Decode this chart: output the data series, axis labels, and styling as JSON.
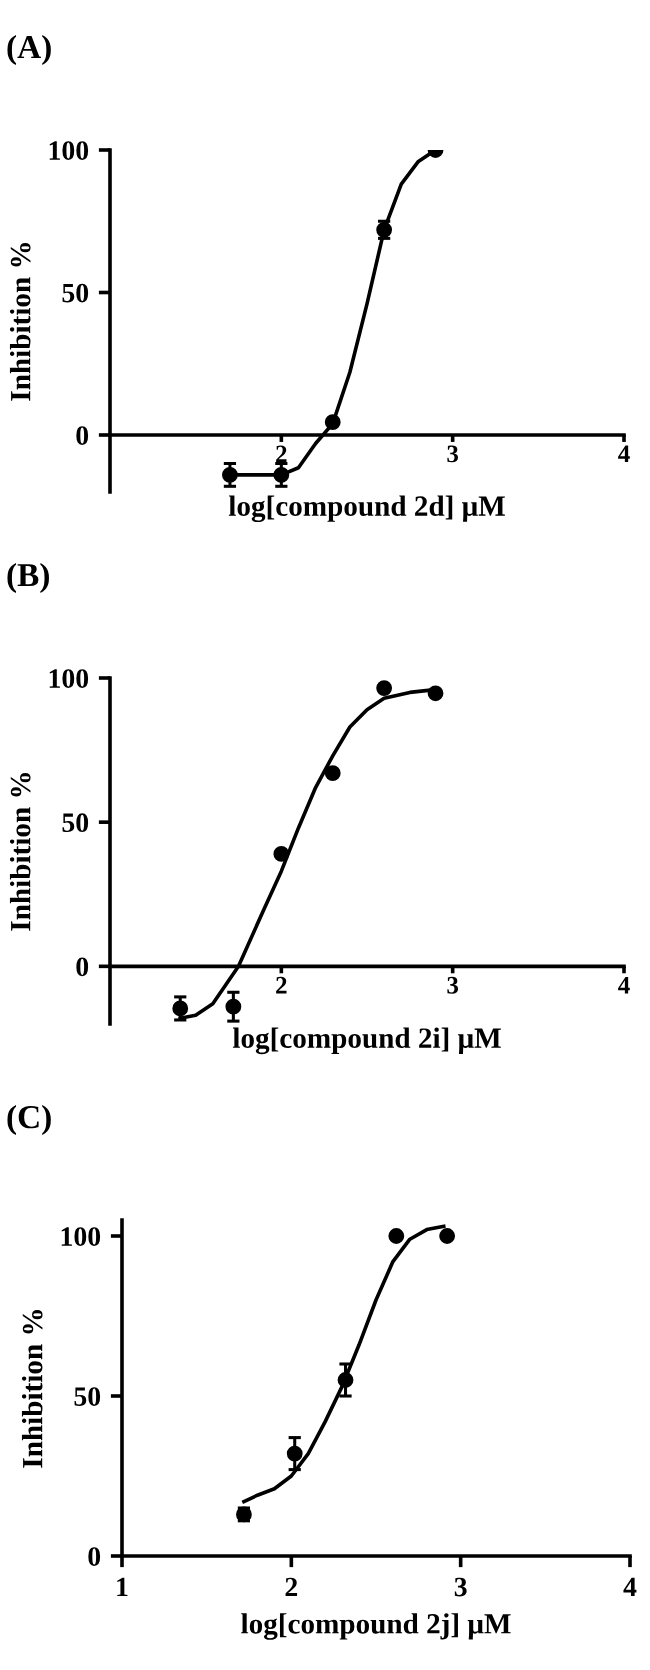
{
  "chart_data": [
    {
      "type": "scatter",
      "title": "(A)",
      "xlabel": "log[compound 2d] μM",
      "ylabel": "Inhibition %",
      "xlim": [
        1,
        4
      ],
      "ylim": [
        -20,
        100
      ],
      "xticks": [
        2,
        3,
        4
      ],
      "yticks": [
        0,
        50,
        100
      ],
      "grid": false,
      "series": [
        {
          "color": "#000000",
          "marker": "circle",
          "x": [
            1.7,
            2.0,
            2.3,
            2.6,
            2.9
          ],
          "values": [
            -14,
            -14,
            4.5,
            72,
            100
          ],
          "errors": [
            4,
            4,
            null,
            3,
            null
          ]
        },
        {
          "type": "line",
          "color": "#000000",
          "marker": "none",
          "line_style": "solid",
          "x": [
            1.7,
            1.85,
            2.0,
            2.1,
            2.2,
            2.3,
            2.4,
            2.5,
            2.6,
            2.7,
            2.8,
            2.9
          ],
          "values": [
            -14,
            -14,
            -14,
            -11.5,
            -3,
            4,
            22,
            46,
            72,
            88,
            96,
            100
          ]
        }
      ]
    },
    {
      "type": "scatter",
      "title": "(B)",
      "xlabel": "log[compound 2i] μM",
      "ylabel": "Inhibition %",
      "xlim": [
        1,
        4
      ],
      "ylim": [
        -20,
        100
      ],
      "xticks": [
        2,
        3,
        4
      ],
      "yticks": [
        0,
        50,
        100
      ],
      "grid": false,
      "series": [
        {
          "color": "#000000",
          "marker": "circle",
          "x": [
            1.41,
            1.72,
            2.0,
            2.3,
            2.6,
            2.9
          ],
          "values": [
            -14.6,
            -14,
            39,
            67,
            96.5,
            94.7
          ],
          "errors": [
            4,
            5,
            null,
            null,
            null,
            null
          ]
        },
        {
          "type": "line",
          "color": "#000000",
          "marker": "none",
          "line_style": "solid",
          "x": [
            1.41,
            1.5,
            1.6,
            1.75,
            1.9,
            2.0,
            2.1,
            2.2,
            2.3,
            2.4,
            2.5,
            2.6,
            2.75,
            2.9
          ],
          "values": [
            -18,
            -17,
            -13,
            0,
            20,
            33,
            48,
            62,
            73,
            83,
            89,
            93,
            95,
            96
          ]
        }
      ]
    },
    {
      "type": "scatter",
      "title": "(C)",
      "xlabel": "log[compound 2j] μM",
      "ylabel": "Inhibition %",
      "xlim": [
        1,
        4
      ],
      "ylim": [
        0,
        105
      ],
      "xticks": [
        1,
        2,
        3,
        4
      ],
      "yticks": [
        0,
        50,
        100
      ],
      "grid": false,
      "series": [
        {
          "color": "#000000",
          "marker": "circle",
          "x": [
            1.72,
            2.02,
            2.32,
            2.62,
            2.92
          ],
          "values": [
            13,
            32,
            55,
            100,
            100
          ],
          "errors": [
            2,
            5,
            5,
            null,
            null
          ]
        },
        {
          "type": "line",
          "color": "#000000",
          "marker": "none",
          "line_style": "solid",
          "x": [
            1.72,
            1.8,
            1.9,
            2.0,
            2.1,
            2.2,
            2.3,
            2.4,
            2.5,
            2.6,
            2.7,
            2.8,
            2.9
          ],
          "values": [
            17,
            19,
            21,
            25,
            32,
            42,
            53,
            66,
            80,
            92,
            99,
            102,
            103
          ]
        }
      ]
    }
  ]
}
